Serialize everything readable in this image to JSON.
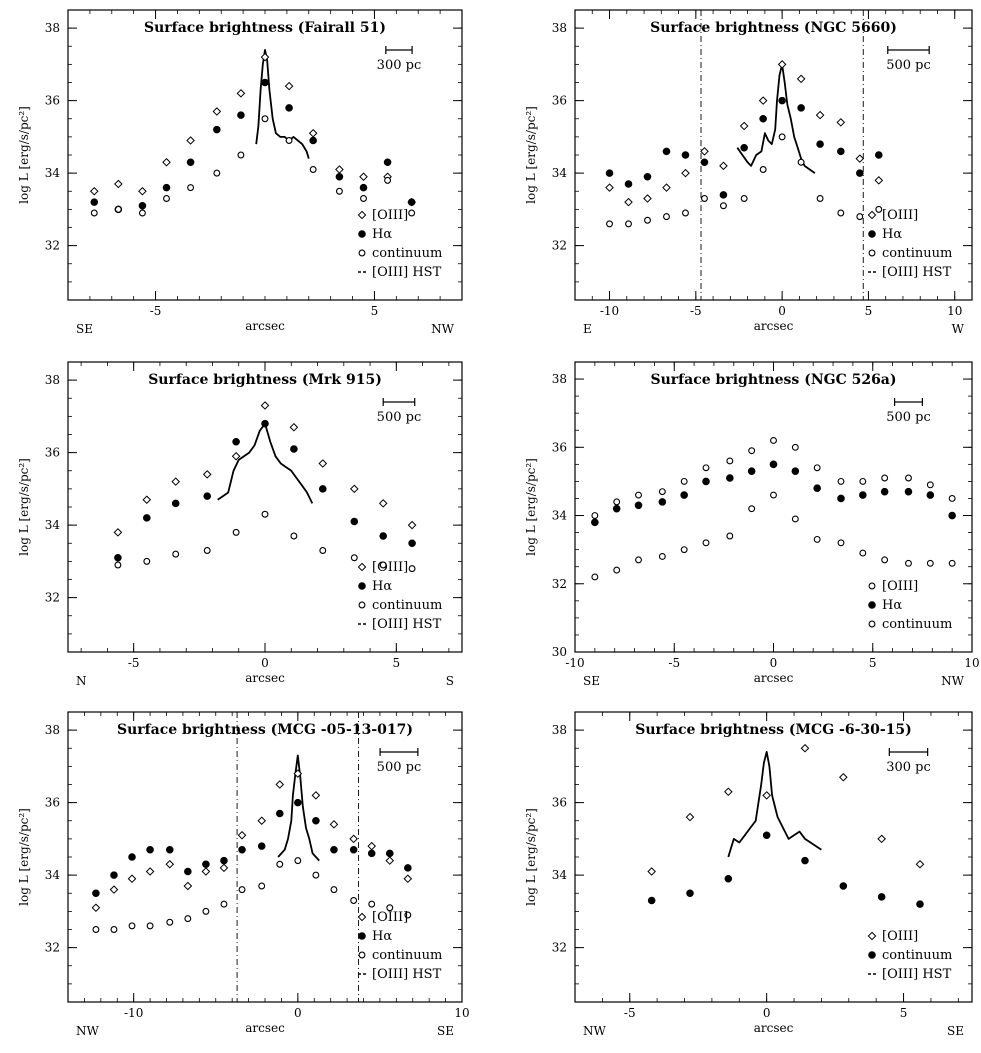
{
  "colors": {
    "ink": "#000000",
    "background": "#ffffff"
  },
  "chart_data": [
    {
      "type": "scatter",
      "title": "Surface brightness (Fairall 51)",
      "xlabel": "arcsec",
      "ylabel": "log L [erg/s/pc²]",
      "xlim": [
        -9,
        9
      ],
      "ylim": [
        30.5,
        38.5
      ],
      "xticks": [
        -5,
        5
      ],
      "yticks": [
        32,
        34,
        36,
        38
      ],
      "xtick_labels": [
        "-5",
        "5"
      ],
      "ytick_labels": [
        "32",
        "34",
        "36",
        "38"
      ],
      "dir_left": "SE",
      "dir_right": "NW",
      "scalebar": {
        "label": "300 pc",
        "length_arcsec": 1.2
      },
      "legend": [
        "[OIII]",
        "Hα",
        "continuum",
        "[OIII] HST"
      ],
      "vlines": [],
      "series": [
        {
          "name": "[OIII]",
          "marker": "diamond",
          "x": [
            -7.8,
            -6.7,
            -5.6,
            -4.5,
            -3.4,
            -2.2,
            -1.1,
            0,
            1.1,
            2.2,
            3.4,
            4.5,
            5.6,
            6.7
          ],
          "y": [
            33.5,
            33.7,
            33.5,
            34.3,
            34.9,
            35.7,
            36.2,
            37.2,
            36.4,
            35.1,
            34.1,
            33.9,
            33.9,
            33.2
          ]
        },
        {
          "name": "Hα",
          "marker": "filled",
          "x": [
            -7.8,
            -6.7,
            -5.6,
            -4.5,
            -3.4,
            -2.2,
            -1.1,
            0,
            1.1,
            2.2,
            3.4,
            4.5,
            5.6,
            6.7
          ],
          "y": [
            33.2,
            33.0,
            33.1,
            33.6,
            34.3,
            35.2,
            35.6,
            36.5,
            35.8,
            34.9,
            33.9,
            33.6,
            34.3,
            33.2
          ]
        },
        {
          "name": "continuum",
          "marker": "ring",
          "x": [
            -7.8,
            -6.7,
            -5.6,
            -4.5,
            -3.4,
            -2.2,
            -1.1,
            0,
            1.1,
            2.2,
            3.4,
            4.5,
            5.6,
            6.7
          ],
          "y": [
            32.9,
            33.0,
            32.9,
            33.3,
            33.6,
            34.0,
            34.5,
            35.5,
            34.9,
            34.1,
            33.5,
            33.3,
            33.8,
            32.9
          ]
        }
      ],
      "hst_line": {
        "x": [
          -0.4,
          -0.3,
          -0.2,
          -0.1,
          0,
          0.1,
          0.2,
          0.35,
          0.5,
          0.7,
          0.9,
          1.1,
          1.3,
          1.5,
          1.7,
          1.9,
          2.0
        ],
        "y": [
          34.8,
          35.3,
          36.3,
          37.0,
          37.4,
          37.1,
          36.3,
          35.5,
          35.1,
          35.0,
          35.0,
          34.9,
          35.0,
          34.9,
          34.8,
          34.6,
          34.4
        ]
      }
    },
    {
      "type": "scatter",
      "title": "Surface brightness (NGC 5660)",
      "xlabel": "arcsec",
      "ylabel": "log L [erg/s/pc²]",
      "xlim": [
        -12,
        11
      ],
      "ylim": [
        30.5,
        38.5
      ],
      "xticks": [
        -10,
        -5,
        0,
        5,
        10
      ],
      "yticks": [
        32,
        34,
        36,
        38
      ],
      "xtick_labels": [
        "-10",
        "-5",
        "0",
        "5",
        "10"
      ],
      "ytick_labels": [
        "32",
        "34",
        "36",
        "38"
      ],
      "dir_left": "E",
      "dir_right": "W",
      "scalebar": {
        "label": "500 pc",
        "length_arcsec": 2.4
      },
      "legend": [
        "[OIII]",
        "Hα",
        "continuum",
        "[OIII] HST"
      ],
      "vlines": [
        -4.7,
        4.7
      ],
      "series": [
        {
          "name": "[OIII]",
          "marker": "diamond",
          "x": [
            -10,
            -8.9,
            -7.8,
            -6.7,
            -5.6,
            -4.5,
            -3.4,
            -2.2,
            -1.1,
            0,
            1.1,
            2.2,
            3.4,
            4.5,
            5.6
          ],
          "y": [
            33.6,
            33.2,
            33.3,
            33.6,
            34.0,
            34.6,
            34.2,
            35.3,
            36.0,
            37.0,
            36.6,
            35.6,
            35.4,
            34.4,
            33.8
          ]
        },
        {
          "name": "Hα",
          "marker": "filled",
          "x": [
            -10,
            -8.9,
            -7.8,
            -6.7,
            -5.6,
            -4.5,
            -3.4,
            -2.2,
            -1.1,
            0,
            1.1,
            2.2,
            3.4,
            4.5,
            5.6
          ],
          "y": [
            34.0,
            33.7,
            33.9,
            34.6,
            34.5,
            34.3,
            33.4,
            34.7,
            35.5,
            36.0,
            35.8,
            34.8,
            34.6,
            34.0,
            34.5
          ]
        },
        {
          "name": "continuum",
          "marker": "ring",
          "x": [
            -10,
            -8.9,
            -7.8,
            -6.7,
            -5.6,
            -4.5,
            -3.4,
            -2.2,
            -1.1,
            0,
            1.1,
            2.2,
            3.4,
            4.5,
            5.6
          ],
          "y": [
            32.6,
            32.6,
            32.7,
            32.8,
            32.9,
            33.3,
            33.1,
            33.3,
            34.1,
            35.0,
            34.3,
            33.3,
            32.9,
            32.8,
            33.0
          ]
        }
      ],
      "hst_line": {
        "x": [
          -2.6,
          -2.3,
          -2.0,
          -1.8,
          -1.5,
          -1.2,
          -1.0,
          -0.8,
          -0.6,
          -0.4,
          -0.3,
          -0.15,
          0,
          0.15,
          0.3,
          0.5,
          0.7,
          0.9,
          1.1,
          1.3,
          1.6,
          1.9
        ],
        "y": [
          34.7,
          34.5,
          34.3,
          34.2,
          34.5,
          34.6,
          35.1,
          34.9,
          34.8,
          35.2,
          36.0,
          36.7,
          37.0,
          36.5,
          35.9,
          35.5,
          35.0,
          34.7,
          34.4,
          34.2,
          34.1,
          34.0
        ]
      }
    },
    {
      "type": "scatter",
      "title": "Surface brightness (Mrk 915)",
      "xlabel": "arcsec",
      "ylabel": "log L [erg/s/pc²]",
      "xlim": [
        -7.5,
        7.5
      ],
      "ylim": [
        30.5,
        38.5
      ],
      "xticks": [
        -5,
        0,
        5
      ],
      "yticks": [
        32,
        34,
        36,
        38
      ],
      "xtick_labels": [
        "-5",
        "0",
        "5"
      ],
      "ytick_labels": [
        "32",
        "34",
        "36",
        "38"
      ],
      "dir_left": "N",
      "dir_right": "S",
      "scalebar": {
        "label": "500 pc",
        "length_arcsec": 1.2
      },
      "legend": [
        "[OIII]",
        "Hα",
        "continuum",
        "[OIII] HST"
      ],
      "vlines": [],
      "series": [
        {
          "name": "[OIII]",
          "marker": "diamond",
          "x": [
            -5.6,
            -4.5,
            -3.4,
            -2.2,
            -1.1,
            0,
            1.1,
            2.2,
            3.4,
            4.5,
            5.6
          ],
          "y": [
            33.8,
            34.7,
            35.2,
            35.4,
            35.9,
            37.3,
            36.7,
            35.7,
            35.0,
            34.6,
            34.0
          ]
        },
        {
          "name": "Hα",
          "marker": "filled",
          "x": [
            -5.6,
            -4.5,
            -3.4,
            -2.2,
            -1.1,
            0,
            1.1,
            2.2,
            3.4,
            4.5,
            5.6
          ],
          "y": [
            33.1,
            34.2,
            34.6,
            34.8,
            36.3,
            36.8,
            36.1,
            35.0,
            34.1,
            33.7,
            33.5
          ]
        },
        {
          "name": "continuum",
          "marker": "ring",
          "x": [
            -5.6,
            -4.5,
            -3.4,
            -2.2,
            -1.1,
            0,
            1.1,
            2.2,
            3.4,
            4.5,
            5.6
          ],
          "y": [
            32.9,
            33.0,
            33.2,
            33.3,
            33.8,
            34.3,
            33.7,
            33.3,
            33.1,
            32.9,
            32.8
          ]
        }
      ],
      "hst_line": {
        "x": [
          -1.8,
          -1.6,
          -1.4,
          -1.2,
          -1.0,
          -0.8,
          -0.6,
          -0.4,
          -0.2,
          0,
          0.2,
          0.4,
          0.6,
          0.8,
          1.0,
          1.2,
          1.4,
          1.6,
          1.8
        ],
        "y": [
          34.7,
          34.8,
          34.9,
          35.5,
          35.8,
          35.9,
          36.0,
          36.2,
          36.6,
          36.8,
          36.3,
          35.9,
          35.7,
          35.6,
          35.5,
          35.3,
          35.1,
          34.9,
          34.6
        ]
      }
    },
    {
      "type": "scatter",
      "title": "Surface brightness (NGC 526a)",
      "xlabel": "arcsec",
      "ylabel": "log L [erg/s/pc²]",
      "xlim": [
        -10,
        10
      ],
      "ylim": [
        30,
        38.5
      ],
      "xticks": [
        -10,
        -5,
        0,
        5,
        10
      ],
      "yticks": [
        30,
        32,
        34,
        36,
        38
      ],
      "xtick_labels": [
        "-10",
        "-5",
        "0",
        "5",
        "10"
      ],
      "ytick_labels": [
        "30",
        "32",
        "34",
        "36",
        "38"
      ],
      "dir_left": "SE",
      "dir_right": "NW",
      "scalebar": {
        "label": "500 pc",
        "length_arcsec": 1.4
      },
      "legend": [
        "[OIII]",
        "Hα",
        "continuum"
      ],
      "vlines": [],
      "series": [
        {
          "name": "[OIII]",
          "marker": "ring",
          "x": [
            -9,
            -7.9,
            -6.8,
            -5.6,
            -4.5,
            -3.4,
            -2.2,
            -1.1,
            0,
            1.1,
            2.2,
            3.4,
            4.5,
            5.6,
            6.8,
            7.9,
            9
          ],
          "y": [
            34.0,
            34.4,
            34.6,
            34.7,
            35.0,
            35.4,
            35.6,
            35.9,
            36.2,
            36.0,
            35.4,
            35.0,
            35.0,
            35.1,
            35.1,
            34.9,
            34.5
          ]
        },
        {
          "name": "Hα",
          "marker": "filled",
          "x": [
            -9,
            -7.9,
            -6.8,
            -5.6,
            -4.5,
            -3.4,
            -2.2,
            -1.1,
            0,
            1.1,
            2.2,
            3.4,
            4.5,
            5.6,
            6.8,
            7.9,
            9
          ],
          "y": [
            33.8,
            34.2,
            34.3,
            34.4,
            34.6,
            35.0,
            35.1,
            35.3,
            35.5,
            35.3,
            34.8,
            34.5,
            34.6,
            34.7,
            34.7,
            34.6,
            34.0
          ]
        },
        {
          "name": "continuum",
          "marker": "ring",
          "x": [
            -9,
            -7.9,
            -6.8,
            -5.6,
            -4.5,
            -3.4,
            -2.2,
            -1.1,
            0,
            1.1,
            2.2,
            3.4,
            4.5,
            5.6,
            6.8,
            7.9,
            9
          ],
          "y": [
            32.2,
            32.4,
            32.7,
            32.8,
            33.0,
            33.2,
            33.4,
            34.2,
            34.6,
            33.9,
            33.3,
            33.2,
            32.9,
            32.7,
            32.6,
            32.6,
            32.6
          ]
        }
      ],
      "hst_line": null
    },
    {
      "type": "scatter",
      "title": "Surface brightness (MCG -05-13-017)",
      "xlabel": "arcsec",
      "ylabel": "log L [erg/s/pc²]",
      "xlim": [
        -14,
        10
      ],
      "ylim": [
        30.5,
        38.5
      ],
      "xticks": [
        -10,
        0,
        10
      ],
      "yticks": [
        32,
        34,
        36,
        38
      ],
      "xtick_labels": [
        "-10",
        "0",
        "10"
      ],
      "ytick_labels": [
        "32",
        "34",
        "36",
        "38"
      ],
      "dir_left": "NW",
      "dir_right": "SE",
      "scalebar": {
        "label": "500 pc",
        "length_arcsec": 2.3
      },
      "legend": [
        "[OIII]",
        "Hα",
        "continuum",
        "[OIII] HST"
      ],
      "vlines": [
        -3.7,
        3.7
      ],
      "series": [
        {
          "name": "[OIII]",
          "marker": "diamond",
          "x": [
            -12.3,
            -11.2,
            -10.1,
            -9,
            -7.8,
            -6.7,
            -5.6,
            -4.5,
            -3.4,
            -2.2,
            -1.1,
            0,
            1.1,
            2.2,
            3.4,
            4.5,
            5.6,
            6.7
          ],
          "y": [
            33.1,
            33.6,
            33.9,
            34.1,
            34.3,
            33.7,
            34.1,
            34.2,
            35.1,
            35.5,
            36.5,
            36.8,
            36.2,
            35.4,
            35.0,
            34.8,
            34.4,
            33.9
          ]
        },
        {
          "name": "Hα",
          "marker": "filled",
          "x": [
            -12.3,
            -11.2,
            -10.1,
            -9,
            -7.8,
            -6.7,
            -5.6,
            -4.5,
            -3.4,
            -2.2,
            -1.1,
            0,
            1.1,
            2.2,
            3.4,
            4.5,
            5.6,
            6.7
          ],
          "y": [
            33.5,
            34.0,
            34.5,
            34.7,
            34.7,
            34.1,
            34.3,
            34.4,
            34.7,
            34.8,
            35.7,
            36.0,
            35.5,
            34.7,
            34.7,
            34.6,
            34.6,
            34.2
          ]
        },
        {
          "name": "continuum",
          "marker": "ring",
          "x": [
            -12.3,
            -11.2,
            -10.1,
            -9,
            -7.8,
            -6.7,
            -5.6,
            -4.5,
            -3.4,
            -2.2,
            -1.1,
            0,
            1.1,
            2.2,
            3.4,
            4.5,
            5.6,
            6.7
          ],
          "y": [
            32.5,
            32.5,
            32.6,
            32.6,
            32.7,
            32.8,
            33.0,
            33.2,
            33.6,
            33.7,
            34.3,
            34.4,
            34.0,
            33.6,
            33.3,
            33.2,
            33.1,
            32.9
          ]
        }
      ],
      "hst_line": {
        "x": [
          -1.2,
          -1.0,
          -0.8,
          -0.6,
          -0.4,
          -0.3,
          -0.15,
          0,
          0.15,
          0.3,
          0.5,
          0.7,
          0.9,
          1.1,
          1.3
        ],
        "y": [
          34.5,
          34.6,
          34.7,
          35.0,
          35.5,
          36.2,
          36.8,
          37.3,
          36.7,
          35.9,
          35.3,
          35.0,
          34.6,
          34.5,
          34.4
        ]
      }
    },
    {
      "type": "scatter",
      "title": "Surface brightness (MCG -6-30-15)",
      "xlabel": "arcsec",
      "ylabel": "log L [erg/s/pc²]",
      "xlim": [
        -7,
        7.5
      ],
      "ylim": [
        30.5,
        38.5
      ],
      "xticks": [
        -5,
        0,
        5
      ],
      "yticks": [
        32,
        34,
        36,
        38
      ],
      "xtick_labels": [
        "-5",
        "0",
        "5"
      ],
      "ytick_labels": [
        "32",
        "34",
        "36",
        "38"
      ],
      "dir_left": "NW",
      "dir_right": "SE",
      "scalebar": {
        "label": "300 pc",
        "length_arcsec": 1.4
      },
      "legend": [
        "[OIII]",
        "continuum",
        "[OIII] HST"
      ],
      "vlines": [],
      "series": [
        {
          "name": "[OIII]",
          "marker": "diamond",
          "x": [
            -4.2,
            -2.8,
            -1.4,
            0,
            1.4,
            2.8,
            4.2,
            5.6
          ],
          "y": [
            34.1,
            35.6,
            36.3,
            36.2,
            37.5,
            36.7,
            35.0,
            34.3
          ]
        },
        {
          "name": "continuum",
          "marker": "filled",
          "x": [
            -4.2,
            -2.8,
            -1.4,
            0,
            1.4,
            2.8,
            4.2,
            5.6
          ],
          "y": [
            33.3,
            33.5,
            33.9,
            35.1,
            34.4,
            33.7,
            33.4,
            33.2
          ]
        }
      ],
      "hst_line": {
        "x": [
          -1.4,
          -1.2,
          -1.0,
          -0.8,
          -0.6,
          -0.4,
          -0.2,
          -0.1,
          0,
          0.1,
          0.2,
          0.4,
          0.6,
          0.8,
          1.0,
          1.2,
          1.4,
          1.6,
          1.8,
          2.0
        ],
        "y": [
          34.5,
          35.0,
          34.9,
          35.1,
          35.3,
          35.5,
          36.5,
          37.1,
          37.4,
          37.0,
          36.2,
          35.6,
          35.3,
          35.0,
          35.1,
          35.2,
          35.0,
          34.9,
          34.8,
          34.7
        ]
      }
    }
  ]
}
